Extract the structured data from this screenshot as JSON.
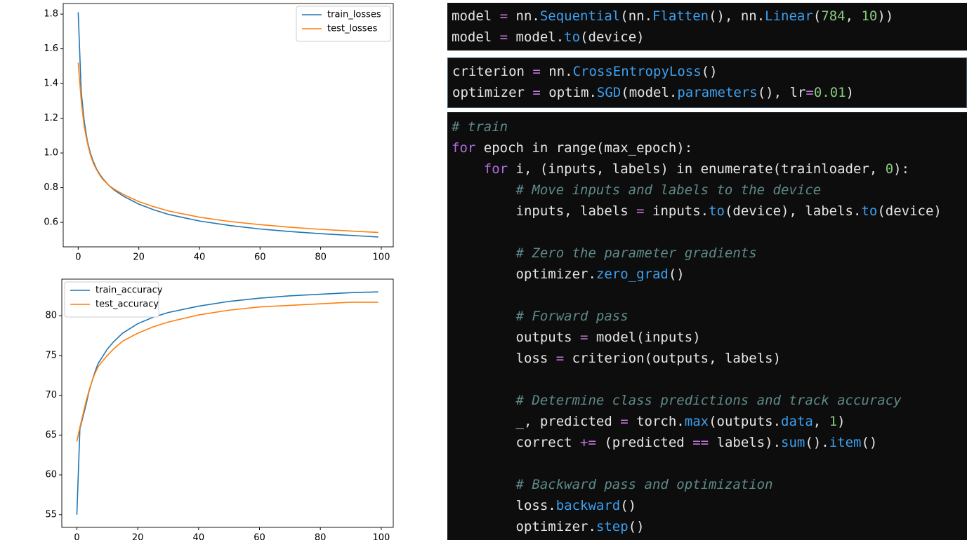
{
  "chart_data": [
    {
      "type": "line",
      "x": [
        0,
        1,
        2,
        3,
        4,
        5,
        6,
        7,
        8,
        10,
        12,
        15,
        20,
        25,
        30,
        40,
        50,
        60,
        70,
        80,
        90,
        99
      ],
      "series": [
        {
          "name": "train_losses",
          "color": "#1f77b4",
          "values": [
            1.81,
            1.35,
            1.18,
            1.07,
            1.0,
            0.95,
            0.91,
            0.88,
            0.855,
            0.815,
            0.785,
            0.75,
            0.705,
            0.672,
            0.645,
            0.608,
            0.582,
            0.562,
            0.547,
            0.535,
            0.525,
            0.516
          ]
        },
        {
          "name": "test_losses",
          "color": "#ff7f0e",
          "values": [
            1.52,
            1.3,
            1.15,
            1.06,
            0.99,
            0.94,
            0.905,
            0.875,
            0.85,
            0.815,
            0.79,
            0.76,
            0.72,
            0.69,
            0.665,
            0.63,
            0.605,
            0.587,
            0.572,
            0.56,
            0.55,
            0.542
          ]
        }
      ],
      "xlim": [
        -4.95,
        103.95
      ],
      "ylim": [
        0.459,
        1.861
      ],
      "xticks": [
        0,
        20,
        40,
        60,
        80,
        100
      ],
      "yticks": [
        0.6,
        0.8,
        {
          "value": 1,
          "label": "1.0"
        },
        1.2,
        1.4,
        1.6,
        1.8
      ],
      "legend": "upper right"
    },
    {
      "type": "line",
      "x": [
        0,
        1,
        2,
        3,
        4,
        5,
        6,
        7,
        8,
        10,
        12,
        15,
        20,
        25,
        30,
        40,
        50,
        60,
        70,
        80,
        90,
        99
      ],
      "series": [
        {
          "name": "train_accuracy",
          "color": "#1f77b4",
          "values": [
            55,
            65.8,
            67.3,
            68.8,
            70.5,
            71.8,
            73,
            74,
            74.6,
            75.8,
            76.7,
            77.8,
            79,
            79.8,
            80.4,
            81.2,
            81.8,
            82.2,
            82.5,
            82.7,
            82.9,
            83
          ]
        },
        {
          "name": "test_accuracy",
          "color": "#ff7f0e",
          "values": [
            64.2,
            66,
            67.6,
            69.2,
            70.6,
            71.8,
            72.8,
            73.6,
            74.1,
            75,
            75.8,
            76.8,
            77.8,
            78.6,
            79.2,
            80.1,
            80.7,
            81.1,
            81.3,
            81.5,
            81.7,
            81.7
          ]
        }
      ],
      "xlim": [
        -4.95,
        103.95
      ],
      "ylim": [
        53.4,
        84.6
      ],
      "xticks": [
        0,
        20,
        40,
        60,
        80,
        100
      ],
      "yticks": [
        55,
        60,
        65,
        70,
        75,
        80
      ],
      "legend": "upper left"
    }
  ],
  "code": {
    "blocks": [
      {
        "groups": [
          [
            [
              "model ",
              "=",
              " nn.",
              "Sequential",
              "(nn.",
              "Flatten",
              "(), nn.",
              "Linear",
              "(",
              "784",
              ", ",
              "10",
              "))"
            ],
            [
              "model ",
              "=",
              " model.",
              "to",
              "(device)"
            ]
          ]
        ]
      },
      {
        "groups": [
          [
            [
              "criterion ",
              "=",
              " nn.",
              "CrossEntropyLoss",
              "()"
            ],
            [
              "optimizer ",
              "=",
              " optim.",
              "SGD",
              "(model.",
              "parameters",
              "(), lr",
              "=",
              "0.01",
              ")"
            ]
          ]
        ]
      },
      {
        "groups": [
          [
            [
              "# train"
            ],
            [
              "for",
              " epoch in range(max_epoch):"
            ],
            [
              "    for",
              " i, (inputs, labels) in enumerate(trainloader, ",
              "0",
              "):"
            ],
            [
              "        # Move inputs and labels to the device"
            ],
            [
              "        inputs, labels ",
              "=",
              " inputs.",
              "to",
              "(device), labels.",
              "to",
              "(device)"
            ]
          ],
          [
            [
              "        # Zero the parameter gradients"
            ],
            [
              "        optimizer.",
              "zero_grad",
              "()"
            ]
          ],
          [
            [
              "        # Forward pass"
            ],
            [
              "        outputs ",
              "=",
              " model(inputs)"
            ],
            [
              "        loss ",
              "=",
              " criterion(outputs, labels)"
            ]
          ],
          [
            [
              "        # Determine class predictions and track accuracy"
            ],
            [
              "        _, predicted ",
              "=",
              " torch.",
              "max",
              "(outputs.",
              "data",
              ", ",
              "1",
              ")"
            ],
            [
              "        correct ",
              "+=",
              " (predicted ",
              "==",
              " labels).",
              "sum",
              "().",
              "item",
              "()"
            ]
          ],
          [
            [
              "        # Backward pass and optimization"
            ],
            [
              "        loss.",
              "backward",
              "()"
            ],
            [
              "        optimizer.",
              "step",
              "()"
            ]
          ]
        ]
      }
    ]
  }
}
